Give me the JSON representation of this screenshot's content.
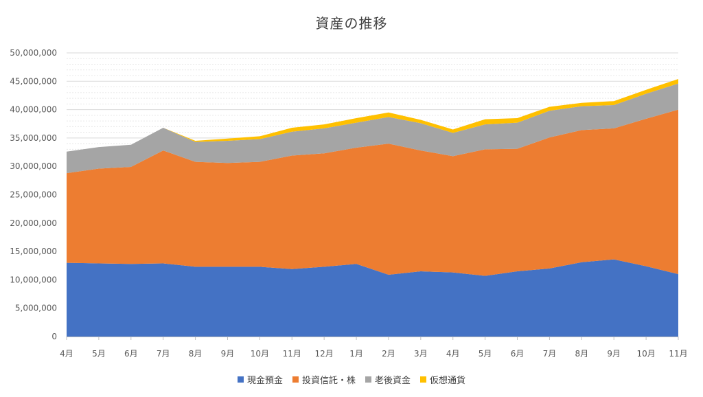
{
  "chart_data": {
    "type": "area",
    "stacked": true,
    "title": "資産の推移",
    "xlabel": "",
    "ylabel": "",
    "ylim": [
      0,
      50000000
    ],
    "yticks": [
      0,
      5000000,
      10000000,
      15000000,
      20000000,
      25000000,
      30000000,
      35000000,
      40000000,
      45000000,
      50000000
    ],
    "ytick_labels": [
      "0",
      "5,000,000",
      "10,000,000",
      "15,000,000",
      "20,000,000",
      "25,000,000",
      "30,000,000",
      "35,000,000",
      "40,000,000",
      "45,000,000",
      "50,000,000"
    ],
    "categories": [
      "4月",
      "5月",
      "6月",
      "7月",
      "8月",
      "9月",
      "10月",
      "11月",
      "12月",
      "1月",
      "2月",
      "3月",
      "4月",
      "5月",
      "6月",
      "7月",
      "8月",
      "9月",
      "10月",
      "11月"
    ],
    "series": [
      {
        "name": "現金預金",
        "color": "#4472C4",
        "values": [
          13000000,
          12900000,
          12800000,
          12900000,
          12300000,
          12300000,
          12300000,
          11900000,
          12300000,
          12800000,
          10900000,
          11500000,
          11300000,
          10700000,
          11500000,
          12000000,
          13100000,
          13600000,
          12400000,
          11000000
        ]
      },
      {
        "name": "投資信託・株",
        "color": "#ED7D31",
        "values": [
          15800000,
          16700000,
          17100000,
          19900000,
          18500000,
          18300000,
          18500000,
          20000000,
          20000000,
          20500000,
          23100000,
          21300000,
          20500000,
          22300000,
          21600000,
          23100000,
          23300000,
          23100000,
          26000000,
          29000000
        ]
      },
      {
        "name": "老後資金",
        "color": "#A5A5A5",
        "values": [
          3800000,
          3800000,
          3900000,
          4000000,
          3500000,
          3900000,
          4000000,
          4200000,
          4400000,
          4400000,
          4700000,
          4800000,
          4100000,
          4400000,
          4600000,
          4700000,
          4200000,
          4100000,
          4400000,
          4600000
        ]
      },
      {
        "name": "仮想通貨",
        "color": "#FFC000",
        "values": [
          0,
          0,
          0,
          0,
          200000,
          400000,
          500000,
          700000,
          700000,
          800000,
          800000,
          600000,
          600000,
          900000,
          800000,
          700000,
          600000,
          700000,
          700000,
          800000
        ]
      }
    ],
    "legend_position": "bottom",
    "grid": true
  }
}
